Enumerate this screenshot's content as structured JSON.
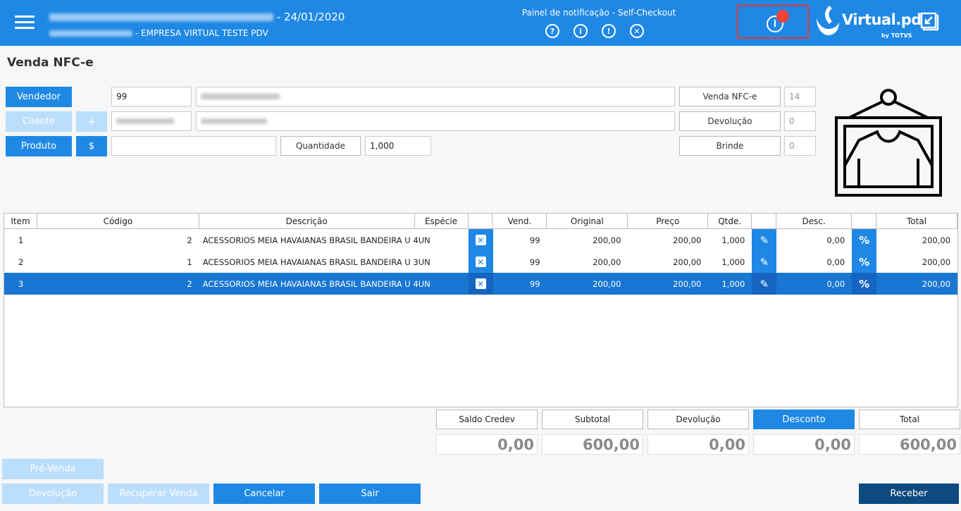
{
  "header": {
    "date": "24/01/2020",
    "company": "EMPRESA VIRTUAL TESTE PDV",
    "notification_panel": "Painel de notificação - Self-Checkout",
    "notif_icons": [
      "?",
      "i",
      "!",
      "✕"
    ],
    "logo_text": "Virtual.pdv",
    "logo_sub": "by TOTVS"
  },
  "page": {
    "title": "Venda NFC-e"
  },
  "form": {
    "vendedor_label": "Vendedor",
    "vendedor_code": "99",
    "cliente_label": "Cliente",
    "cliente_add_label": "+",
    "produto_label": "Produto",
    "price_button_label": "$",
    "quantidade_label": "Quantidade",
    "quantidade_value": "1,000",
    "venda_label": "Venda NFC-e",
    "venda_value": "14",
    "devolucao_label": "Devolução",
    "devolucao_value": "0",
    "brinde_label": "Brinde",
    "brinde_value": "0"
  },
  "table": {
    "headers": [
      "Item",
      "Código",
      "Descrição",
      "Espécie",
      "",
      "Vend.",
      "Original",
      "Preço",
      "Qtde.",
      "",
      "Desc.",
      "",
      "Total"
    ],
    "rows": [
      {
        "item": "1",
        "codigo": "2",
        "descricao": "ACESSORIOS MEIA HAVAIANAS BRASIL BANDEIRA U 4",
        "especie": "UN",
        "vend": "99",
        "original": "200,00",
        "preco": "200,00",
        "qtde": "1,000",
        "desc": "0,00",
        "total": "200,00",
        "selected": false
      },
      {
        "item": "2",
        "codigo": "1",
        "descricao": "ACESSORIOS MEIA HAVAIANAS BRASIL BANDEIRA U 3",
        "especie": "UN",
        "vend": "99",
        "original": "200,00",
        "preco": "200,00",
        "qtde": "1,000",
        "desc": "0,00",
        "total": "200,00",
        "selected": false
      },
      {
        "item": "3",
        "codigo": "2",
        "descricao": "ACESSORIOS MEIA HAVAIANAS BRASIL BANDEIRA U 4",
        "especie": "UN",
        "vend": "99",
        "original": "200,00",
        "preco": "200,00",
        "qtde": "1,000",
        "desc": "0,00",
        "total": "200,00",
        "selected": true
      }
    ]
  },
  "totals": [
    {
      "label": "Saldo Credev",
      "value": "0,00"
    },
    {
      "label": "Subtotal",
      "value": "600,00"
    },
    {
      "label": "Devolução",
      "value": "0,00"
    },
    {
      "label": "Desconto",
      "value": "0,00"
    },
    {
      "label": "Total",
      "value": "600,00"
    }
  ],
  "actions": {
    "pre_venda": "Pré-Venda",
    "devolucao": "Devolução",
    "recuperar": "Recuperar Venda",
    "cancelar": "Cancelar",
    "sair": "Sair",
    "receber": "Receber"
  },
  "colors": {
    "primary": "#1f88e5",
    "selected_row": "#1976d2",
    "disabled": "#bbdefb",
    "receber": "#0d4a7e",
    "alert": "#f44336"
  }
}
